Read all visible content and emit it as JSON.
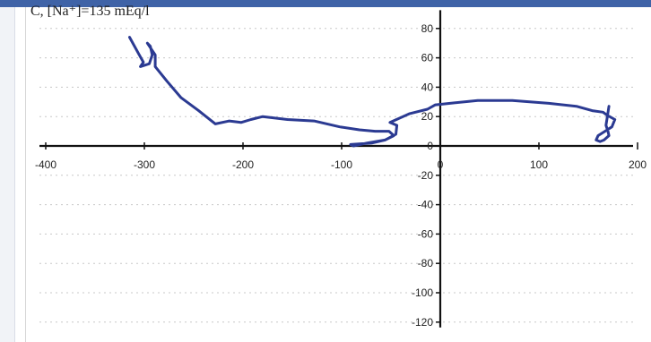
{
  "chart_data": {
    "type": "line",
    "title": "C, [Na⁺]=135 mEq/l",
    "xlabel": "",
    "ylabel": "",
    "xlim": [
      -400,
      200
    ],
    "ylim": [
      -120,
      90
    ],
    "x_ticks": [
      -400,
      -300,
      -200,
      -100,
      0,
      100,
      200
    ],
    "y_ticks": [
      80,
      60,
      40,
      20,
      0,
      -20,
      -40,
      -60,
      -80,
      -100,
      -120
    ],
    "grid": "horizontal-dotted",
    "legend": "none",
    "series": [
      {
        "color": "#2b3a92",
        "x": [
          -315,
          -306,
          -301,
          -304,
          -295,
          -292,
          -294,
          -297,
          -289,
          -289,
          -277,
          -263,
          -245,
          -228,
          -214,
          -202,
          -192,
          -180,
          -155,
          -128,
          -102,
          -82,
          -66,
          -52,
          -47,
          -56,
          -74,
          -88,
          -91,
          -69,
          -56,
          -45,
          -44,
          -51,
          -31,
          -13,
          -5,
          10,
          38,
          73,
          110,
          138,
          154,
          165,
          169,
          177,
          174,
          167,
          160,
          158,
          162,
          166,
          171,
          170,
          168,
          171
        ],
        "y": [
          74,
          63,
          57,
          54,
          56,
          62,
          68,
          70,
          62,
          54,
          44,
          33,
          24,
          15,
          17,
          16,
          18,
          20,
          18,
          17,
          13,
          11,
          10,
          10,
          7,
          4,
          2,
          0,
          1,
          2,
          4,
          8,
          14,
          16,
          22,
          25,
          28,
          29,
          31,
          31,
          29,
          27,
          24,
          23,
          21,
          18,
          13,
          10,
          7,
          4,
          3,
          4,
          7,
          10,
          14,
          27
        ]
      }
    ]
  }
}
